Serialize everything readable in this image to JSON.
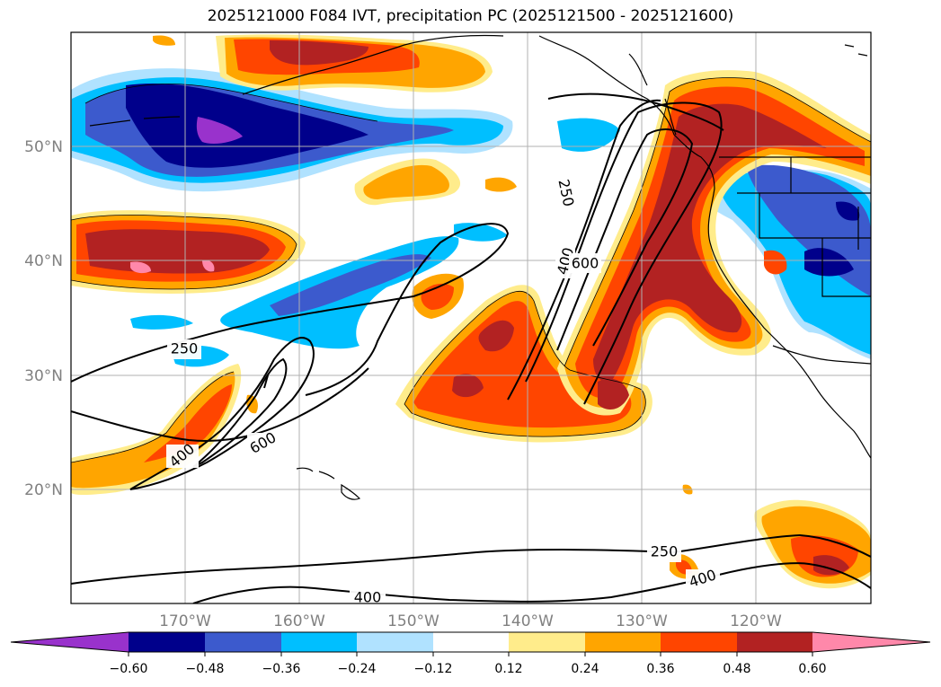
{
  "title": "2025121000 F084 IVT, precipitation PC (2025121500 - 2025121600)",
  "map": {
    "lon_ticks": [
      "170°W",
      "160°W",
      "150°W",
      "140°W",
      "130°W",
      "120°W"
    ],
    "lat_ticks": [
      "50°N",
      "40°N",
      "30°N",
      "20°N"
    ],
    "grid": true,
    "extent": {
      "lon_min": -180,
      "lon_max": -110,
      "lat_min": 10,
      "lat_max": 60
    },
    "ivt_contour_labels": [
      "250",
      "400",
      "600",
      "250",
      "400",
      "600",
      "250",
      "400",
      "400"
    ]
  },
  "colorbar": {
    "tick_labels": [
      "−0.60",
      "−0.48",
      "−0.36",
      "−0.24",
      "−0.12",
      "0.12",
      "0.24",
      "0.36",
      "0.48",
      "0.60"
    ],
    "colors": [
      "#9932cc",
      "#00008b",
      "#3c5acd",
      "#00bfff",
      "#b0e2ff",
      "#ffffff",
      "#ffec8b",
      "#ffa500",
      "#ff4500",
      "#b22222",
      "#ff88aa"
    ],
    "extend": "both"
  }
}
